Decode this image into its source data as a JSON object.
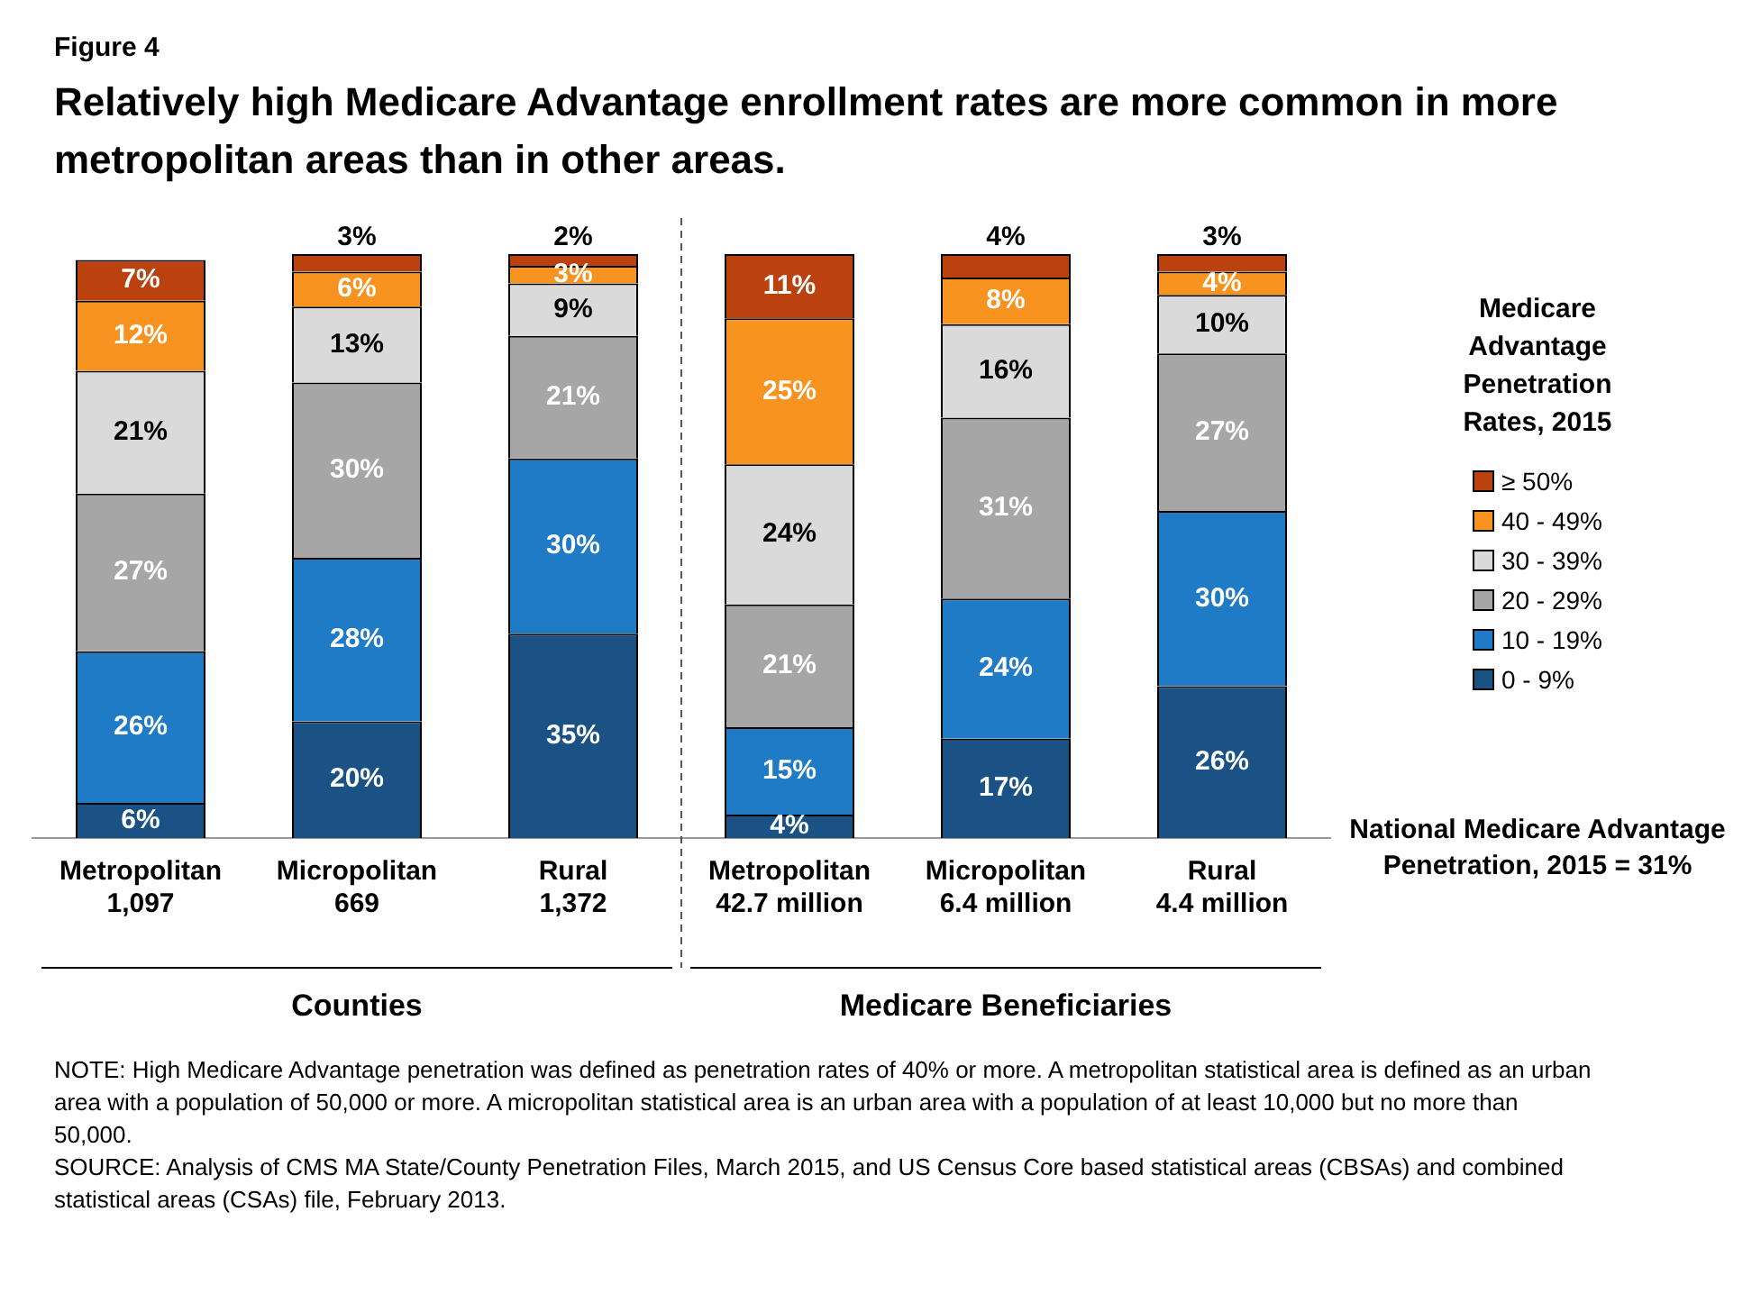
{
  "chart_data": {
    "type": "bar",
    "stacked": true,
    "grid": false,
    "legend": "right",
    "subtitle": "Figure 4",
    "title": "Relatively high Medicare Advantage enrollment rates are more common in more metropolitan areas than in other areas.",
    "legend_title": "Medicare Advantage Penetration Rates, 2015",
    "categories": [
      "Metropolitan\n1,097",
      "Micropolitan\n669",
      "Rural\n1,372",
      "Metropolitan\n42.7 million",
      "Micropolitan\n6.4 million",
      "Rural\n4.4 million"
    ],
    "series": [
      {
        "name": "0 - 9%",
        "color": "#1a5286",
        "values": [
          6,
          20,
          35,
          4,
          17,
          26
        ],
        "value_labels": [
          "6%",
          "20%",
          "35%",
          "4%",
          "17%",
          "26%"
        ]
      },
      {
        "name": "10 - 19%",
        "color": "#1f7bc6",
        "values": [
          26,
          28,
          30,
          15,
          24,
          30
        ],
        "value_labels": [
          "26%",
          "28%",
          "30%",
          "15%",
          "24%",
          "30%"
        ]
      },
      {
        "name": "20 - 29%",
        "color": "#a6a6a6",
        "values": [
          27,
          30,
          21,
          21,
          31,
          27
        ],
        "value_labels": [
          "27%",
          "30%",
          "21%",
          "21%",
          "31%",
          "27%"
        ]
      },
      {
        "name": "30 - 39%",
        "color": "#dadada",
        "values": [
          21,
          13,
          9,
          24,
          16,
          10
        ],
        "value_labels": [
          "21%",
          "13%",
          "9%",
          "24%",
          "16%",
          "10%"
        ]
      },
      {
        "name": "40 - 49%",
        "color": "#f7931e",
        "values": [
          12,
          6,
          3,
          25,
          8,
          4
        ],
        "value_labels": [
          "12%",
          "6%",
          "3%",
          "25%",
          "8%",
          "4%"
        ]
      },
      {
        "name": "≥ 50%",
        "color": "#bb410f",
        "values": [
          7,
          3,
          2,
          11,
          4,
          3
        ],
        "value_labels": [
          "7%",
          "3%",
          "2%",
          "11%",
          "4%",
          "3%"
        ]
      }
    ],
    "annotations": [
      "Counties",
      "Medicare Beneficiaries",
      "National Medicare Advantage Penetration, 2015 = 31%",
      "NOTE: High Medicare Advantage penetration was defined as penetration rates of 40% or more. A metropolitan statistical area is defined as  an urban area with a population of 50,000 or more. A micropolitan statistical area is an urban area with a population of at least 10,000 but no more than 50,000.",
      "SOURCE: Analysis of CMS MA State/County Penetration Files, March 2015, and US Census Core based statistical areas (CBSAs) and combined statistical areas (CSAs) file, February 2013."
    ]
  }
}
